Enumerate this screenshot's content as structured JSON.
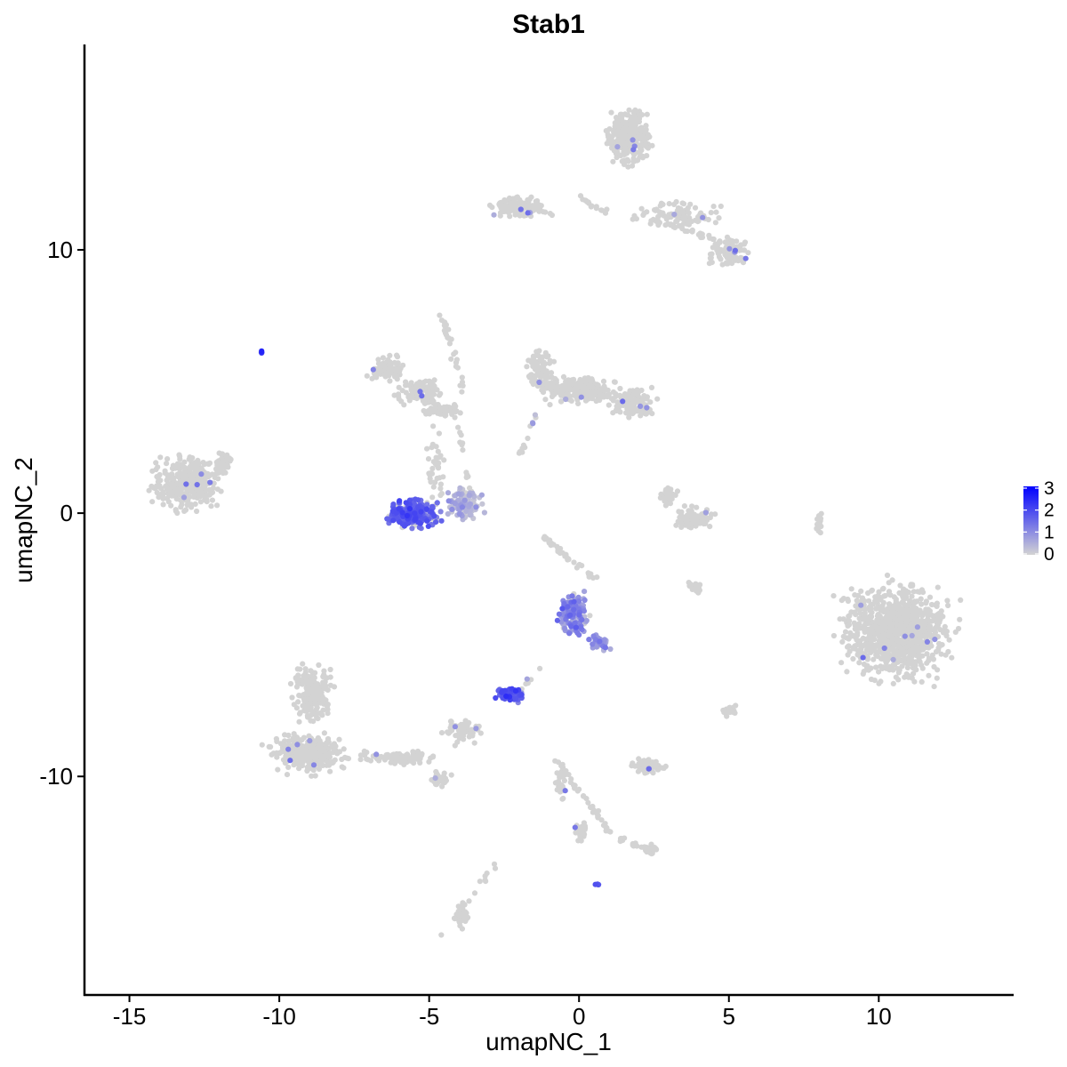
{
  "chart_data": {
    "type": "scatter",
    "title": "Stab1",
    "xlabel": "umapNC_1",
    "ylabel": "umapNC_2",
    "xlim": [
      -16.5,
      14.5
    ],
    "ylim": [
      -18.3,
      17.8
    ],
    "x_ticks": [
      -15,
      -10,
      -5,
      0,
      5,
      10
    ],
    "x_tick_labels": [
      "-15",
      "-10",
      "-5",
      "0",
      "5",
      "10"
    ],
    "y_ticks": [
      -10,
      0,
      10
    ],
    "y_tick_labels": [
      "-10",
      "0",
      "10"
    ],
    "grid": false,
    "legend_position": "right",
    "color_scale": {
      "low_color": "#d3d3d3",
      "high_color": "#0000ff",
      "min": 0,
      "max": 3,
      "breaks": [
        0,
        1,
        2,
        3
      ],
      "labels": [
        "0",
        "1",
        "2",
        "3"
      ]
    },
    "clusters": [
      {
        "cx": -13.1,
        "cy": 1.1,
        "rx": 1.4,
        "ry": 1.2,
        "n": 320,
        "expr": 0
      },
      {
        "cx": -11.9,
        "cy": 1.9,
        "rx": 0.4,
        "ry": 0.6,
        "n": 40,
        "expr": 0
      },
      {
        "cx": -6.4,
        "cy": 5.5,
        "rx": 0.8,
        "ry": 0.6,
        "n": 90,
        "expr": 0
      },
      {
        "cx": -5.3,
        "cy": 4.6,
        "rx": 1.0,
        "ry": 0.7,
        "n": 120,
        "expr": 0
      },
      {
        "cx": -4.6,
        "cy": 3.9,
        "rx": 0.7,
        "ry": 0.3,
        "n": 70,
        "expr": 0
      },
      {
        "cx": -4.8,
        "cy": 1.8,
        "rx": 0.4,
        "ry": 1.6,
        "n": 40,
        "expr": 0
      },
      {
        "cx": -5.6,
        "cy": 0.0,
        "rx": 1.1,
        "ry": 0.65,
        "n": 300,
        "expr": 1.5
      },
      {
        "cx": -3.8,
        "cy": 0.3,
        "rx": 0.7,
        "ry": 0.8,
        "n": 110,
        "expr": 0.4
      },
      {
        "cx": -1.3,
        "cy": 5.4,
        "rx": 0.6,
        "ry": 1.0,
        "n": 90,
        "expr": 0
      },
      {
        "cx": 0.0,
        "cy": 4.7,
        "rx": 1.4,
        "ry": 0.7,
        "n": 220,
        "expr": 0
      },
      {
        "cx": 1.8,
        "cy": 4.2,
        "rx": 1.0,
        "ry": 0.7,
        "n": 120,
        "expr": 0
      },
      {
        "cx": 1.7,
        "cy": 14.3,
        "rx": 1.0,
        "ry": 1.3,
        "n": 300,
        "expr": 0
      },
      {
        "cx": -2.0,
        "cy": 11.6,
        "rx": 1.2,
        "ry": 0.5,
        "n": 130,
        "expr": 0
      },
      {
        "cx": 3.3,
        "cy": 11.3,
        "rx": 1.6,
        "ry": 0.6,
        "n": 90,
        "expr": 0
      },
      {
        "cx": 5.0,
        "cy": 9.9,
        "rx": 0.8,
        "ry": 0.7,
        "n": 90,
        "expr": 0
      },
      {
        "cx": -3.9,
        "cy": -8.3,
        "rx": 0.9,
        "ry": 0.6,
        "n": 50,
        "expr": 0
      },
      {
        "cx": 3.9,
        "cy": -2.8,
        "rx": 0.3,
        "ry": 0.3,
        "n": 20,
        "expr": 0
      },
      {
        "cx": 3.9,
        "cy": -0.2,
        "rx": 0.8,
        "ry": 0.5,
        "n": 110,
        "expr": 0
      },
      {
        "cx": 3.0,
        "cy": 0.7,
        "rx": 0.4,
        "ry": 0.5,
        "n": 30,
        "expr": 0
      },
      {
        "cx": 10.6,
        "cy": -4.5,
        "rx": 2.3,
        "ry": 2.3,
        "n": 900,
        "expr": 0
      },
      {
        "cx": -8.9,
        "cy": -6.8,
        "rx": 0.8,
        "ry": 1.4,
        "n": 200,
        "expr": 0
      },
      {
        "cx": -9.0,
        "cy": -9.1,
        "rx": 1.6,
        "ry": 0.9,
        "n": 300,
        "expr": 0
      },
      {
        "cx": -6.0,
        "cy": -9.3,
        "rx": 1.4,
        "ry": 0.35,
        "n": 100,
        "expr": 0
      },
      {
        "cx": -4.6,
        "cy": -10.1,
        "rx": 0.4,
        "ry": 0.3,
        "n": 30,
        "expr": 0
      },
      {
        "cx": -0.2,
        "cy": -3.8,
        "rx": 0.6,
        "ry": 1.0,
        "n": 150,
        "expr": 1.0
      },
      {
        "cx": 0.7,
        "cy": -4.9,
        "rx": 0.5,
        "ry": 0.4,
        "n": 45,
        "expr": 0.8
      },
      {
        "cx": -2.3,
        "cy": -6.9,
        "rx": 0.55,
        "ry": 0.35,
        "n": 80,
        "expr": 1.6
      },
      {
        "cx": 2.3,
        "cy": -9.6,
        "rx": 0.6,
        "ry": 0.3,
        "n": 70,
        "expr": 0
      },
      {
        "cx": 5.0,
        "cy": -7.5,
        "rx": 0.3,
        "ry": 0.3,
        "n": 25,
        "expr": 0
      },
      {
        "cx": -0.6,
        "cy": -10.3,
        "rx": 0.2,
        "ry": 0.7,
        "n": 30,
        "expr": 0
      },
      {
        "cx": 0.1,
        "cy": -12.1,
        "rx": 0.3,
        "ry": 0.4,
        "n": 25,
        "expr": 0
      },
      {
        "cx": 2.4,
        "cy": -12.8,
        "rx": 0.3,
        "ry": 0.3,
        "n": 25,
        "expr": 0
      },
      {
        "cx": -3.9,
        "cy": -15.3,
        "rx": 0.3,
        "ry": 0.6,
        "n": 50,
        "expr": 0
      },
      {
        "cx": 8.0,
        "cy": -0.4,
        "rx": 0.15,
        "ry": 0.6,
        "n": 15,
        "expr": 0
      },
      {
        "cx": -10.6,
        "cy": 6.1,
        "rx": 0.06,
        "ry": 0.06,
        "n": 4,
        "expr": 2.0
      },
      {
        "cx": 0.6,
        "cy": -14.1,
        "rx": 0.08,
        "ry": 0.06,
        "n": 4,
        "expr": 2.0
      }
    ],
    "trails": [
      {
        "from": [
          -4.6,
          7.6
        ],
        "to": [
          -3.8,
          4.6
        ],
        "n": 30,
        "expr": 0
      },
      {
        "from": [
          -1.2,
          -0.9
        ],
        "to": [
          0.5,
          -2.5
        ],
        "n": 40,
        "expr": 0
      },
      {
        "from": [
          -2.1,
          1.8
        ],
        "to": [
          -1.4,
          3.8
        ],
        "n": 12,
        "expr": 0.7
      },
      {
        "from": [
          -2.0,
          -6.9
        ],
        "to": [
          -1.4,
          -5.8
        ],
        "n": 8,
        "expr": 0.5
      },
      {
        "from": [
          -1.0,
          -9.0
        ],
        "to": [
          1.1,
          -12.2
        ],
        "n": 40,
        "expr": 0
      },
      {
        "from": [
          1.1,
          -12.3
        ],
        "to": [
          2.4,
          -12.8
        ],
        "n": 20,
        "expr": 0
      },
      {
        "from": [
          -4.2,
          4.0
        ],
        "to": [
          -3.6,
          0.8
        ],
        "n": 15,
        "expr": 0
      },
      {
        "from": [
          0.0,
          12.0
        ],
        "to": [
          1.0,
          11.4
        ],
        "n": 15,
        "expr": 0
      },
      {
        "from": [
          2.4,
          11.2
        ],
        "to": [
          5.5,
          10.0
        ],
        "n": 40,
        "expr": 0
      },
      {
        "from": [
          -2.8,
          -13.4
        ],
        "to": [
          -4.6,
          -16.2
        ],
        "n": 12,
        "expr": 0
      }
    ]
  }
}
